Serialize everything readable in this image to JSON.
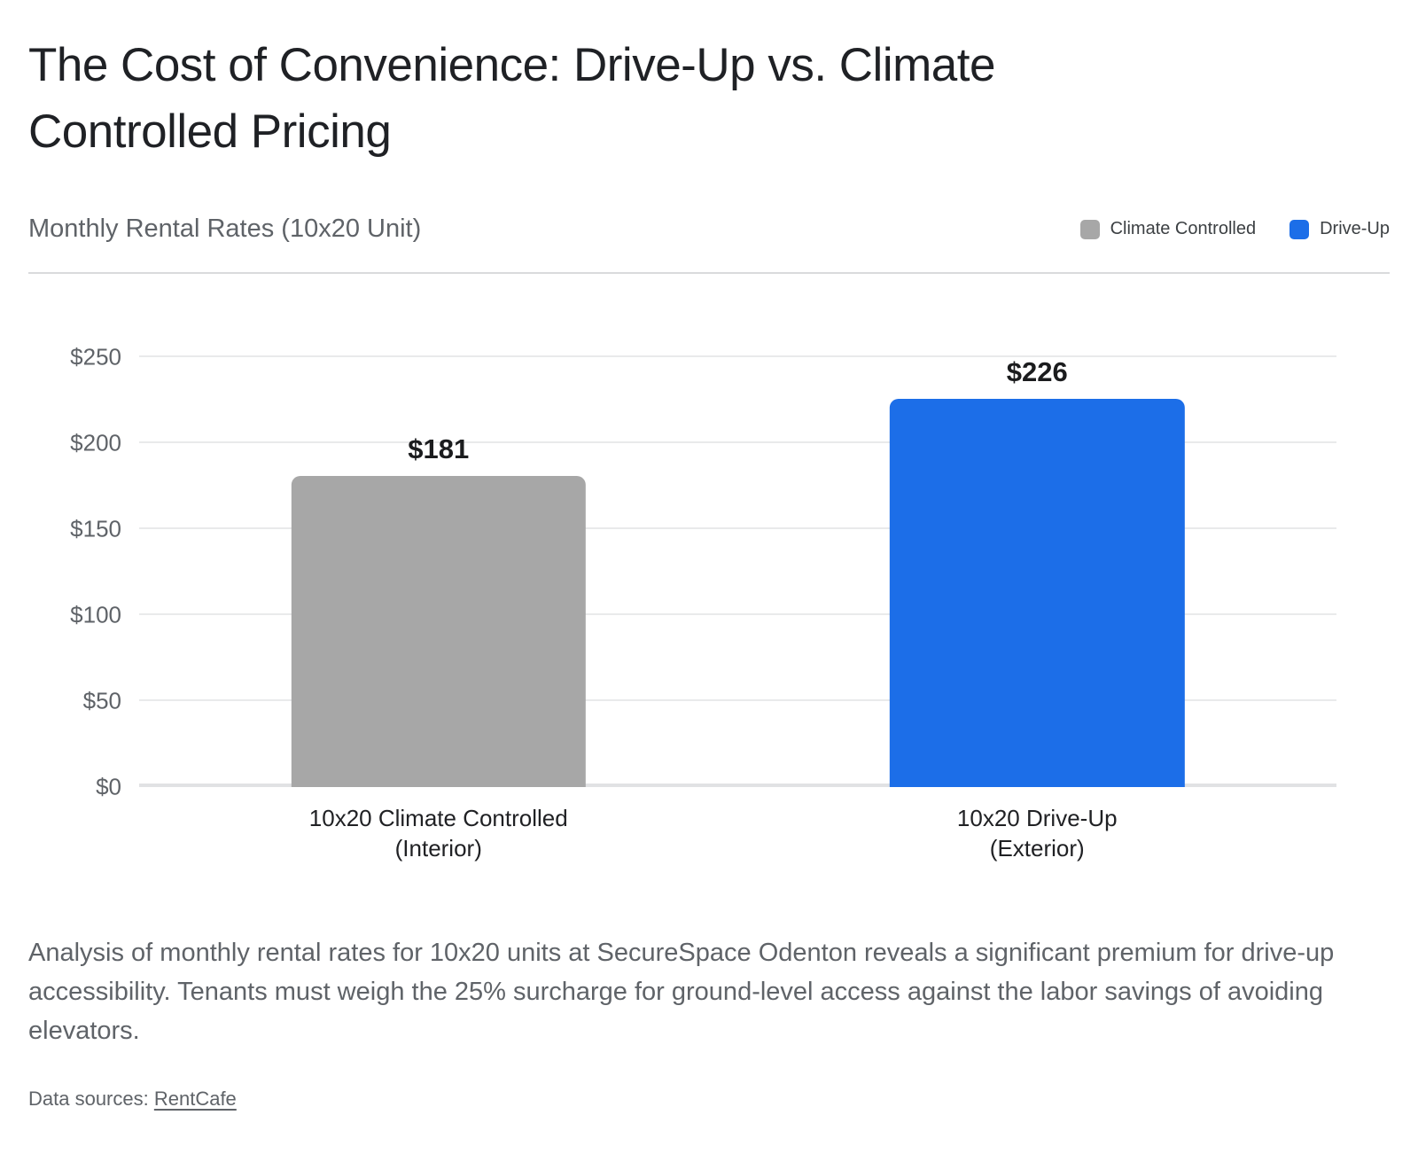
{
  "page": {
    "title": "The Cost of Convenience: Drive-Up vs. Climate Controlled Pricing",
    "note": "Analysis of monthly rental rates for 10x20 units at SecureSpace Odenton reveals a significant premium for drive-up accessibility. Tenants must weigh the 25% surcharge for ground-level access against the labor savings of avoiding elevators.",
    "sources_label": "Data sources: ",
    "sources_link": "RentCafe"
  },
  "chart_data": {
    "type": "bar",
    "title": "Monthly Rental Rates (10x20 Unit)",
    "categories": [
      "10x20 Climate Controlled\n(Interior)",
      "10x20 Drive-Up\n(Exterior)"
    ],
    "values": [
      181,
      226
    ],
    "value_labels": [
      "$181",
      "$226"
    ],
    "bar_colors": [
      "#a7a7a7",
      "#1c6ee8"
    ],
    "legend": [
      {
        "label": "Climate Controlled",
        "color": "#a7a7a7"
      },
      {
        "label": "Drive-Up",
        "color": "#1c6ee8"
      }
    ],
    "legend_position": "top-right",
    "xlabel": "",
    "ylabel": "",
    "ylim": [
      0,
      250
    ],
    "ytick_step": 50,
    "ytick_labels": [
      "$0",
      "$50",
      "$100",
      "$150",
      "$200",
      "$250"
    ],
    "grid": true
  }
}
